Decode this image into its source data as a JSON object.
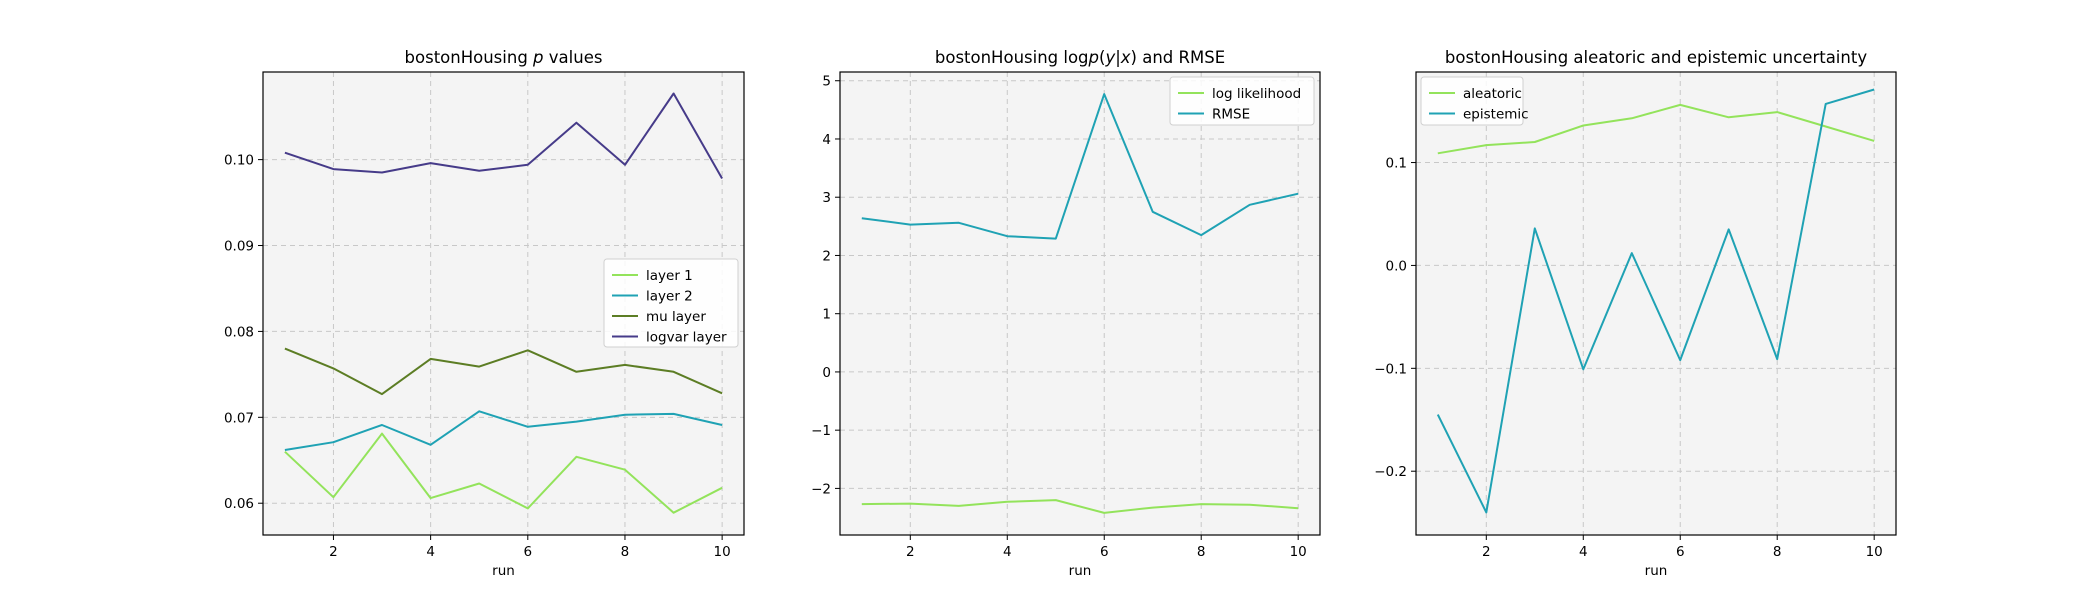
{
  "chart_data": [
    {
      "type": "line",
      "title_parts": [
        "bostonHousing ",
        "p",
        " values"
      ],
      "xlabel": "run",
      "ylabel": "",
      "x": [
        1,
        2,
        3,
        4,
        5,
        6,
        7,
        8,
        9,
        10
      ],
      "xlim": [
        0.55,
        10.45
      ],
      "ylim": [
        0.0563,
        0.1102
      ],
      "xticks": [
        2,
        4,
        6,
        8,
        10
      ],
      "yticks": [
        0.06,
        0.07,
        0.08,
        0.09,
        0.1
      ],
      "ytick_labels": [
        "0.06",
        "0.07",
        "0.08",
        "0.09",
        "0.10"
      ],
      "grid": true,
      "legend_position": "center-right",
      "series": [
        {
          "name": "layer 1",
          "color": "#93e35b",
          "values": [
            0.066,
            0.0607,
            0.0681,
            0.0606,
            0.0623,
            0.0594,
            0.0654,
            0.0639,
            0.0589,
            0.0618
          ]
        },
        {
          "name": "layer 2",
          "color": "#1fa2b4",
          "values": [
            0.0662,
            0.0671,
            0.0691,
            0.0668,
            0.0707,
            0.0689,
            0.0695,
            0.0703,
            0.0704,
            0.0691
          ]
        },
        {
          "name": "mu layer",
          "color": "#5c7d24",
          "values": [
            0.078,
            0.0757,
            0.0727,
            0.0768,
            0.0759,
            0.0778,
            0.0753,
            0.0761,
            0.0753,
            0.0728
          ]
        },
        {
          "name": "logvar layer",
          "color": "#463b89",
          "values": [
            0.1008,
            0.0989,
            0.0985,
            0.0996,
            0.0987,
            0.0994,
            0.1043,
            0.0994,
            0.1077,
            0.0978
          ]
        }
      ]
    },
    {
      "type": "line",
      "title_parts": [
        "bostonHousing log",
        "p",
        "(",
        "y",
        "|",
        "x",
        ") and RMSE"
      ],
      "xlabel": "run",
      "ylabel": "",
      "x": [
        1,
        2,
        3,
        4,
        5,
        6,
        7,
        8,
        9,
        10
      ],
      "xlim": [
        0.55,
        10.45
      ],
      "ylim": [
        -2.8,
        5.15
      ],
      "xticks": [
        2,
        4,
        6,
        8,
        10
      ],
      "yticks": [
        -2,
        -1,
        0,
        1,
        2,
        3,
        4,
        5
      ],
      "ytick_labels": [
        "−2",
        "−1",
        "0",
        "1",
        "2",
        "3",
        "4",
        "5"
      ],
      "grid": true,
      "legend_position": "top-right",
      "series": [
        {
          "name": "log likelihood",
          "color": "#93e35b",
          "values": [
            -2.27,
            -2.26,
            -2.3,
            -2.23,
            -2.2,
            -2.42,
            -2.33,
            -2.27,
            -2.28,
            -2.34
          ]
        },
        {
          "name": "RMSE",
          "color": "#1fa2b4",
          "values": [
            2.64,
            2.53,
            2.56,
            2.33,
            2.29,
            4.77,
            2.75,
            2.35,
            2.87,
            3.06
          ]
        }
      ]
    },
    {
      "type": "line",
      "title_parts": [
        "bostonHousing aleatoric and epistemic uncertainty"
      ],
      "xlabel": "run",
      "ylabel": "",
      "x": [
        1,
        2,
        3,
        4,
        5,
        6,
        7,
        8,
        9,
        10
      ],
      "xlim": [
        0.55,
        10.45
      ],
      "ylim": [
        -0.262,
        0.188
      ],
      "xticks": [
        2,
        4,
        6,
        8,
        10
      ],
      "yticks": [
        -0.2,
        -0.1,
        0.0,
        0.1
      ],
      "ytick_labels": [
        "−0.2",
        "−0.1",
        "0.0",
        "0.1"
      ],
      "grid": true,
      "legend_position": "top-left",
      "series": [
        {
          "name": "aleatoric",
          "color": "#93e35b",
          "values": [
            0.109,
            0.117,
            0.12,
            0.136,
            0.143,
            0.156,
            0.144,
            0.149,
            0.135,
            0.121
          ]
        },
        {
          "name": "epistemic",
          "color": "#1fa2b4",
          "values": [
            -0.145,
            -0.24,
            0.036,
            -0.101,
            0.012,
            -0.092,
            0.035,
            -0.091,
            0.157,
            0.171
          ]
        }
      ]
    }
  ]
}
